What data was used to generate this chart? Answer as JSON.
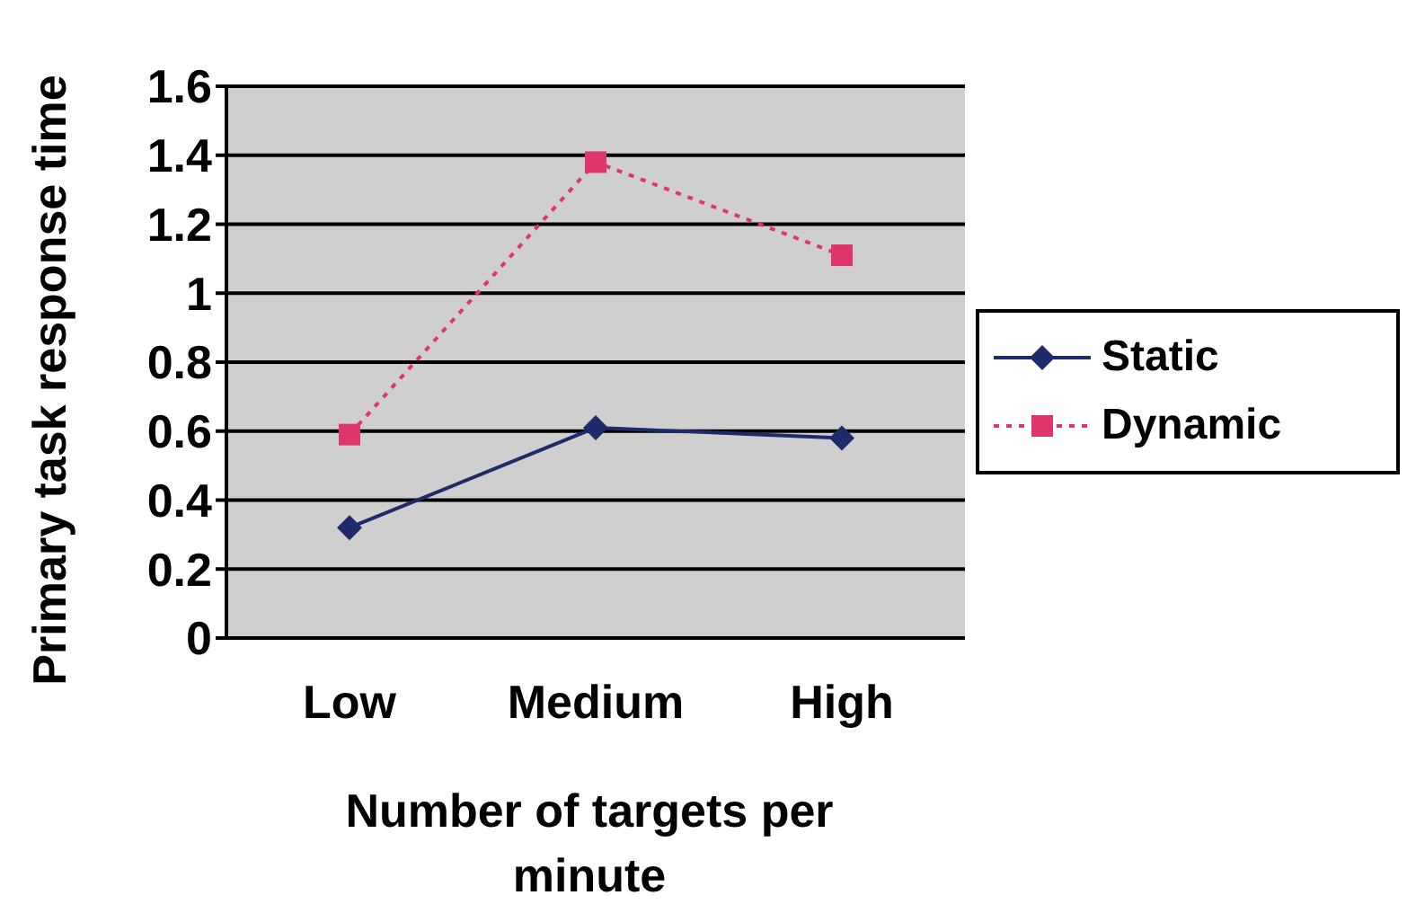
{
  "chart_data": {
    "type": "line",
    "xlabel": "Number of targets per minute",
    "ylabel": "Primary task response time",
    "categories": [
      "Low",
      "Medium",
      "High"
    ],
    "series": [
      {
        "name": "Static",
        "color": "#1f2a6b",
        "values": [
          0.32,
          0.61,
          0.58
        ],
        "marker": "diamond",
        "line_style": "solid"
      },
      {
        "name": "Dynamic",
        "color": "#e0356a",
        "values": [
          0.59,
          1.38,
          1.11
        ],
        "marker": "square",
        "line_style": "dotted"
      }
    ],
    "ylim": [
      0,
      1.6
    ],
    "yticks": [
      0,
      0.2,
      0.4,
      0.6,
      0.8,
      1,
      1.2,
      1.4,
      1.6
    ],
    "grid": "y",
    "legend": "right"
  }
}
